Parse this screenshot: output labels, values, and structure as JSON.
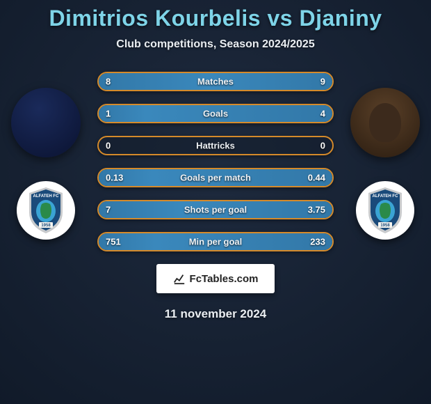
{
  "title": "Dimitrios Kourbelis vs Djaniny",
  "subtitle": "Club competitions, Season 2024/2025",
  "date": "11 november 2024",
  "logo_text": "FcTables.com",
  "colors": {
    "title": "#7ed4e8",
    "text": "#eaeef2",
    "bar_border": "#d58a2a",
    "bar_fill": "#3a88bc",
    "background": "#1a2332"
  },
  "bars": [
    {
      "label": "Matches",
      "left": "8",
      "right": "9",
      "left_pct": 47,
      "right_pct": 53
    },
    {
      "label": "Goals",
      "left": "1",
      "right": "4",
      "left_pct": 20,
      "right_pct": 80
    },
    {
      "label": "Hattricks",
      "left": "0",
      "right": "0",
      "left_pct": 0,
      "right_pct": 0
    },
    {
      "label": "Goals per match",
      "left": "0.13",
      "right": "0.44",
      "left_pct": 23,
      "right_pct": 77
    },
    {
      "label": "Shots per goal",
      "left": "7",
      "right": "3.75",
      "left_pct": 35,
      "right_pct": 65
    },
    {
      "label": "Min per goal",
      "left": "751",
      "right": "233",
      "left_pct": 24,
      "right_pct": 76
    }
  ],
  "club": {
    "name": "ALFATEH FC",
    "year": "1958",
    "shield_top": "#1a4a7a",
    "shield_bottom": "#2a8a4a",
    "shield_outline": "#c8cacc"
  }
}
